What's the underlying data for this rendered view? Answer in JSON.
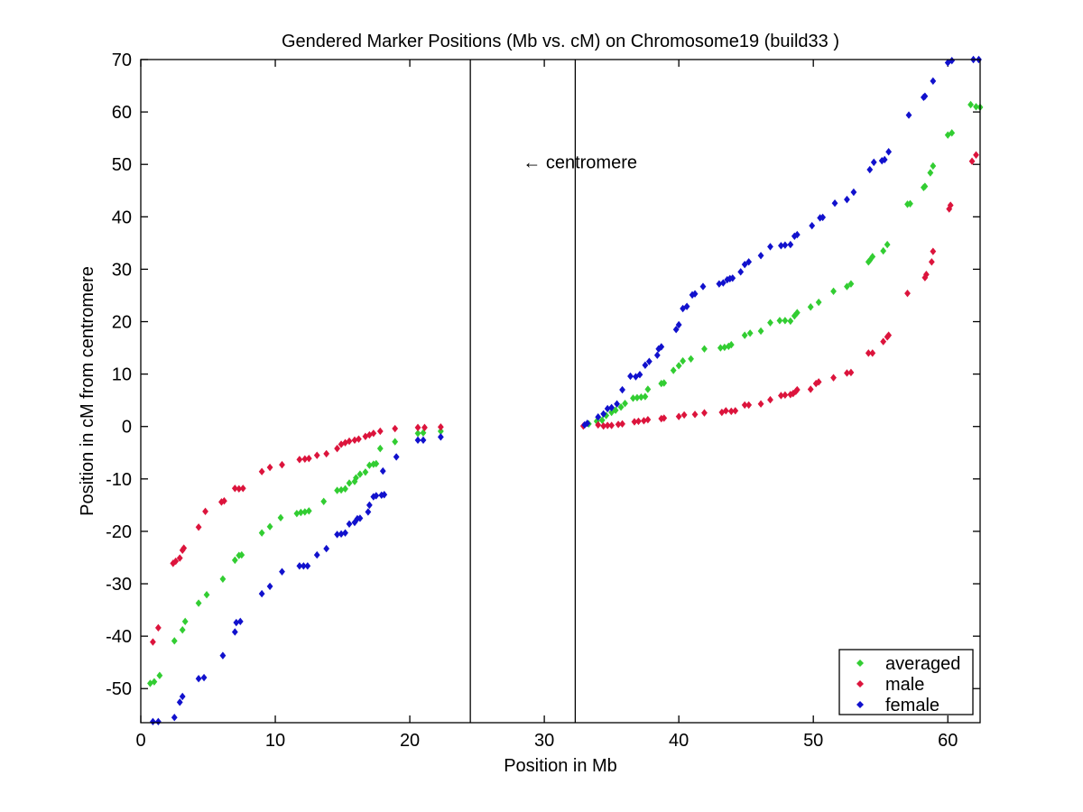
{
  "chart_data": {
    "type": "scatter",
    "title": "Gendered Marker Positions (Mb vs. cM) on Chromosome19 (build33 )",
    "xlabel": "Position in Mb",
    "ylabel": "Position in cM from centromere",
    "xlim": [
      0,
      62.4
    ],
    "ylim": [
      -56.5,
      70
    ],
    "xticks": [
      0,
      10,
      20,
      30,
      40,
      50,
      60
    ],
    "yticks": [
      -50,
      -40,
      -30,
      -20,
      -10,
      0,
      10,
      20,
      30,
      40,
      50,
      60,
      70
    ],
    "grid": false,
    "legend_position": "lower right",
    "vlines": [
      24.5,
      32.3
    ],
    "annotation": {
      "text": "← centromere",
      "x": 28.4,
      "y": 49.3
    },
    "series": [
      {
        "name": "averaged",
        "color": "#32CD32",
        "marker": "diamond",
        "points": [
          [
            0.7,
            -49.0
          ],
          [
            1.0,
            -48.7
          ],
          [
            1.4,
            -47.5
          ],
          [
            2.5,
            -40.9
          ],
          [
            3.1,
            -38.8
          ],
          [
            3.3,
            -37.2
          ],
          [
            4.3,
            -33.7
          ],
          [
            4.9,
            -32.1
          ],
          [
            6.1,
            -29.1
          ],
          [
            7.0,
            -25.5
          ],
          [
            7.3,
            -24.6
          ],
          [
            7.5,
            -24.5
          ],
          [
            9.0,
            -20.3
          ],
          [
            9.6,
            -19.1
          ],
          [
            10.4,
            -17.4
          ],
          [
            11.6,
            -16.6
          ],
          [
            11.9,
            -16.4
          ],
          [
            12.2,
            -16.3
          ],
          [
            12.5,
            -16.1
          ],
          [
            13.6,
            -14.3
          ],
          [
            14.6,
            -12.2
          ],
          [
            14.9,
            -12.1
          ],
          [
            15.2,
            -11.9
          ],
          [
            15.5,
            -10.8
          ],
          [
            15.9,
            -10.5
          ],
          [
            16.0,
            -9.8
          ],
          [
            16.3,
            -9.1
          ],
          [
            16.7,
            -8.7
          ],
          [
            17.0,
            -7.4
          ],
          [
            17.3,
            -7.2
          ],
          [
            17.5,
            -7.1
          ],
          [
            17.8,
            -4.2
          ],
          [
            18.9,
            -2.9
          ],
          [
            20.6,
            -1.3
          ],
          [
            21.0,
            -1.2
          ],
          [
            22.3,
            -0.9
          ],
          [
            33.3,
            0.5
          ],
          [
            33.9,
            1.0
          ],
          [
            34.3,
            1.2
          ],
          [
            34.6,
            2.1
          ],
          [
            35.0,
            2.7
          ],
          [
            35.3,
            3.1
          ],
          [
            35.7,
            3.7
          ],
          [
            36.0,
            4.4
          ],
          [
            36.6,
            5.4
          ],
          [
            36.9,
            5.5
          ],
          [
            37.2,
            5.6
          ],
          [
            37.5,
            5.7
          ],
          [
            37.7,
            7.1
          ],
          [
            38.7,
            8.2
          ],
          [
            38.9,
            8.3
          ],
          [
            39.6,
            10.7
          ],
          [
            40.0,
            11.6
          ],
          [
            40.3,
            12.5
          ],
          [
            40.9,
            12.9
          ],
          [
            41.9,
            14.8
          ],
          [
            43.1,
            15.0
          ],
          [
            43.4,
            15.1
          ],
          [
            43.7,
            15.3
          ],
          [
            43.9,
            15.6
          ],
          [
            44.9,
            17.4
          ],
          [
            45.3,
            17.8
          ],
          [
            46.1,
            18.2
          ],
          [
            46.8,
            19.8
          ],
          [
            47.5,
            20.2
          ],
          [
            47.9,
            20.2
          ],
          [
            48.3,
            20.1
          ],
          [
            48.6,
            21.1
          ],
          [
            48.8,
            21.7
          ],
          [
            49.8,
            22.8
          ],
          [
            50.4,
            23.7
          ],
          [
            51.5,
            25.8
          ],
          [
            52.5,
            26.7
          ],
          [
            52.8,
            27.2
          ],
          [
            54.1,
            31.4
          ],
          [
            54.2,
            31.7
          ],
          [
            54.4,
            32.4
          ],
          [
            55.2,
            33.5
          ],
          [
            55.5,
            34.7
          ],
          [
            57.0,
            42.4
          ],
          [
            57.2,
            42.5
          ],
          [
            58.2,
            45.6
          ],
          [
            58.3,
            45.8
          ],
          [
            58.7,
            48.4
          ],
          [
            58.9,
            49.7
          ],
          [
            60.0,
            55.6
          ],
          [
            60.3,
            56.0
          ],
          [
            61.7,
            61.4
          ],
          [
            62.1,
            61.0
          ],
          [
            62.4,
            60.9
          ]
        ]
      },
      {
        "name": "male",
        "color": "#DC143C",
        "marker": "diamond",
        "points": [
          [
            0.9,
            -41.1
          ],
          [
            1.3,
            -38.4
          ],
          [
            2.4,
            -26.1
          ],
          [
            2.6,
            -25.7
          ],
          [
            2.9,
            -25.1
          ],
          [
            3.1,
            -23.6
          ],
          [
            3.2,
            -23.2
          ],
          [
            4.3,
            -19.2
          ],
          [
            4.8,
            -16.2
          ],
          [
            6.0,
            -14.4
          ],
          [
            6.2,
            -14.2
          ],
          [
            7.0,
            -11.8
          ],
          [
            7.3,
            -11.9
          ],
          [
            7.6,
            -11.8
          ],
          [
            9.0,
            -8.6
          ],
          [
            9.6,
            -7.8
          ],
          [
            10.5,
            -7.3
          ],
          [
            11.8,
            -6.3
          ],
          [
            12.2,
            -6.2
          ],
          [
            12.5,
            -6.1
          ],
          [
            13.1,
            -5.5
          ],
          [
            13.8,
            -5.2
          ],
          [
            14.6,
            -4.2
          ],
          [
            14.9,
            -3.4
          ],
          [
            15.2,
            -3.1
          ],
          [
            15.5,
            -2.8
          ],
          [
            15.9,
            -2.6
          ],
          [
            16.2,
            -2.4
          ],
          [
            16.7,
            -1.9
          ],
          [
            17.0,
            -1.6
          ],
          [
            17.3,
            -1.3
          ],
          [
            17.8,
            -0.9
          ],
          [
            18.9,
            -0.4
          ],
          [
            20.6,
            -0.2
          ],
          [
            21.1,
            -0.2
          ],
          [
            22.3,
            -0.1
          ],
          [
            32.9,
            0.1
          ],
          [
            34.0,
            0.3
          ],
          [
            34.4,
            0.1
          ],
          [
            34.7,
            0.2
          ],
          [
            35.0,
            0.2
          ],
          [
            35.5,
            0.4
          ],
          [
            35.8,
            0.5
          ],
          [
            36.7,
            0.9
          ],
          [
            37.0,
            1.0
          ],
          [
            37.4,
            1.1
          ],
          [
            37.7,
            1.3
          ],
          [
            38.7,
            1.5
          ],
          [
            38.9,
            1.6
          ],
          [
            40.0,
            1.9
          ],
          [
            40.4,
            2.2
          ],
          [
            41.2,
            2.3
          ],
          [
            41.9,
            2.6
          ],
          [
            43.2,
            2.7
          ],
          [
            43.5,
            3.0
          ],
          [
            43.9,
            2.9
          ],
          [
            44.2,
            3.0
          ],
          [
            44.9,
            4.1
          ],
          [
            45.2,
            4.1
          ],
          [
            46.1,
            4.3
          ],
          [
            46.8,
            5.1
          ],
          [
            47.6,
            5.9
          ],
          [
            47.9,
            6.0
          ],
          [
            48.3,
            6.1
          ],
          [
            48.5,
            6.3
          ],
          [
            48.7,
            6.7
          ],
          [
            48.8,
            7.0
          ],
          [
            49.8,
            7.1
          ],
          [
            50.2,
            8.2
          ],
          [
            50.4,
            8.5
          ],
          [
            51.5,
            9.3
          ],
          [
            52.5,
            10.2
          ],
          [
            52.8,
            10.3
          ],
          [
            54.1,
            14.0
          ],
          [
            54.4,
            14.0
          ],
          [
            55.2,
            16.2
          ],
          [
            55.5,
            17.1
          ],
          [
            55.6,
            17.4
          ],
          [
            57.0,
            25.4
          ],
          [
            58.3,
            28.4
          ],
          [
            58.4,
            29.0
          ],
          [
            58.8,
            31.4
          ],
          [
            58.9,
            33.4
          ],
          [
            60.1,
            41.5
          ],
          [
            60.2,
            42.2
          ],
          [
            61.8,
            50.6
          ],
          [
            62.1,
            51.8
          ]
        ]
      },
      {
        "name": "female",
        "color": "#1111CD",
        "marker": "diamond",
        "points": [
          [
            0.9,
            -56.3
          ],
          [
            1.3,
            -56.3
          ],
          [
            2.5,
            -55.5
          ],
          [
            2.9,
            -52.6
          ],
          [
            3.1,
            -51.5
          ],
          [
            4.3,
            -48.1
          ],
          [
            4.7,
            -47.9
          ],
          [
            6.1,
            -43.7
          ],
          [
            7.0,
            -39.2
          ],
          [
            7.1,
            -37.4
          ],
          [
            7.4,
            -37.2
          ],
          [
            9.0,
            -31.9
          ],
          [
            9.6,
            -30.5
          ],
          [
            10.5,
            -27.7
          ],
          [
            11.8,
            -26.6
          ],
          [
            12.1,
            -26.6
          ],
          [
            12.4,
            -26.6
          ],
          [
            13.1,
            -24.5
          ],
          [
            13.8,
            -23.3
          ],
          [
            14.6,
            -20.6
          ],
          [
            14.9,
            -20.5
          ],
          [
            15.2,
            -20.3
          ],
          [
            15.5,
            -18.6
          ],
          [
            15.9,
            -18.3
          ],
          [
            16.1,
            -17.6
          ],
          [
            16.3,
            -17.5
          ],
          [
            16.9,
            -16.3
          ],
          [
            17.0,
            -15.0
          ],
          [
            17.3,
            -13.4
          ],
          [
            17.5,
            -13.2
          ],
          [
            17.9,
            -13.1
          ],
          [
            18.1,
            -13.0
          ],
          [
            18.0,
            -8.5
          ],
          [
            19.0,
            -5.8
          ],
          [
            20.6,
            -2.6
          ],
          [
            21.0,
            -2.6
          ],
          [
            22.3,
            -2.0
          ],
          [
            33.0,
            0.3
          ],
          [
            33.2,
            0.6
          ],
          [
            34.0,
            1.8
          ],
          [
            34.4,
            2.4
          ],
          [
            34.7,
            3.4
          ],
          [
            35.0,
            3.6
          ],
          [
            35.4,
            4.3
          ],
          [
            35.8,
            7.0
          ],
          [
            36.4,
            9.6
          ],
          [
            36.8,
            9.5
          ],
          [
            37.1,
            9.9
          ],
          [
            37.5,
            11.7
          ],
          [
            37.8,
            12.4
          ],
          [
            38.4,
            13.6
          ],
          [
            38.5,
            14.8
          ],
          [
            38.7,
            15.2
          ],
          [
            39.8,
            18.5
          ],
          [
            40.0,
            19.4
          ],
          [
            40.3,
            22.5
          ],
          [
            40.6,
            22.9
          ],
          [
            41.0,
            25.1
          ],
          [
            41.2,
            25.3
          ],
          [
            41.8,
            26.7
          ],
          [
            43.0,
            27.2
          ],
          [
            43.3,
            27.4
          ],
          [
            43.6,
            28.0
          ],
          [
            43.8,
            28.2
          ],
          [
            44.0,
            28.3
          ],
          [
            44.6,
            29.5
          ],
          [
            44.9,
            30.9
          ],
          [
            45.2,
            31.4
          ],
          [
            46.1,
            32.6
          ],
          [
            46.8,
            34.3
          ],
          [
            47.6,
            34.5
          ],
          [
            47.9,
            34.6
          ],
          [
            48.3,
            34.7
          ],
          [
            48.6,
            36.3
          ],
          [
            48.8,
            36.6
          ],
          [
            49.9,
            38.3
          ],
          [
            50.5,
            39.8
          ],
          [
            50.7,
            39.9
          ],
          [
            51.6,
            42.6
          ],
          [
            52.5,
            43.3
          ],
          [
            53.0,
            44.7
          ],
          [
            54.2,
            49.0
          ],
          [
            54.5,
            50.4
          ],
          [
            55.1,
            50.7
          ],
          [
            55.3,
            50.9
          ],
          [
            55.6,
            52.4
          ],
          [
            57.1,
            59.4
          ],
          [
            58.2,
            62.8
          ],
          [
            58.3,
            63.0
          ],
          [
            58.9,
            65.9
          ],
          [
            60.0,
            69.4
          ],
          [
            60.3,
            69.8
          ],
          [
            61.9,
            70.0
          ],
          [
            62.3,
            70.0
          ]
        ]
      }
    ]
  }
}
